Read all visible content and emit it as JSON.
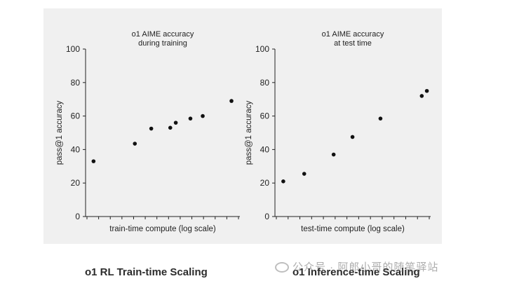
{
  "chart_data": [
    {
      "type": "scatter",
      "title": [
        "o1 AIME accuracy",
        "during training"
      ],
      "xlabel": "train-time compute (log scale)",
      "ylabel": "pass@1 accuracy",
      "ylim": [
        0,
        100
      ],
      "yticks": [
        0,
        20,
        40,
        60,
        80,
        100
      ],
      "x_scale": "log",
      "grid": false,
      "series": [
        {
          "x": [
            1,
            2.6,
            3.8,
            5.9,
            6.7,
            9.4,
            12.5,
            24.3
          ],
          "y": [
            33,
            43.5,
            52.5,
            53,
            56,
            58.5,
            60,
            69
          ]
        }
      ]
    },
    {
      "type": "scatter",
      "title": [
        "o1 AIME accuracy",
        "at test time"
      ],
      "xlabel": "test-time compute (log scale)",
      "ylabel": "pass@1 accuracy",
      "ylim": [
        0,
        100
      ],
      "yticks": [
        0,
        20,
        40,
        60,
        80,
        100
      ],
      "x_scale": "log",
      "grid": false,
      "series": [
        {
          "x": [
            1,
            2,
            5.3,
            9.9,
            25,
            98.2,
            116.3
          ],
          "y": [
            21,
            25.5,
            37,
            47.5,
            58.5,
            72,
            75
          ]
        }
      ]
    }
  ],
  "captions": {
    "left": "o1 RL Train-time Scaling",
    "right": "o1 Inference-time Scaling"
  },
  "watermark": "公众号 · 阿郎小哥的随笔驿站",
  "colors": {
    "panel": "#f0f0f0",
    "dot": "#111111",
    "axis": "#222222",
    "text": "#222222"
  }
}
